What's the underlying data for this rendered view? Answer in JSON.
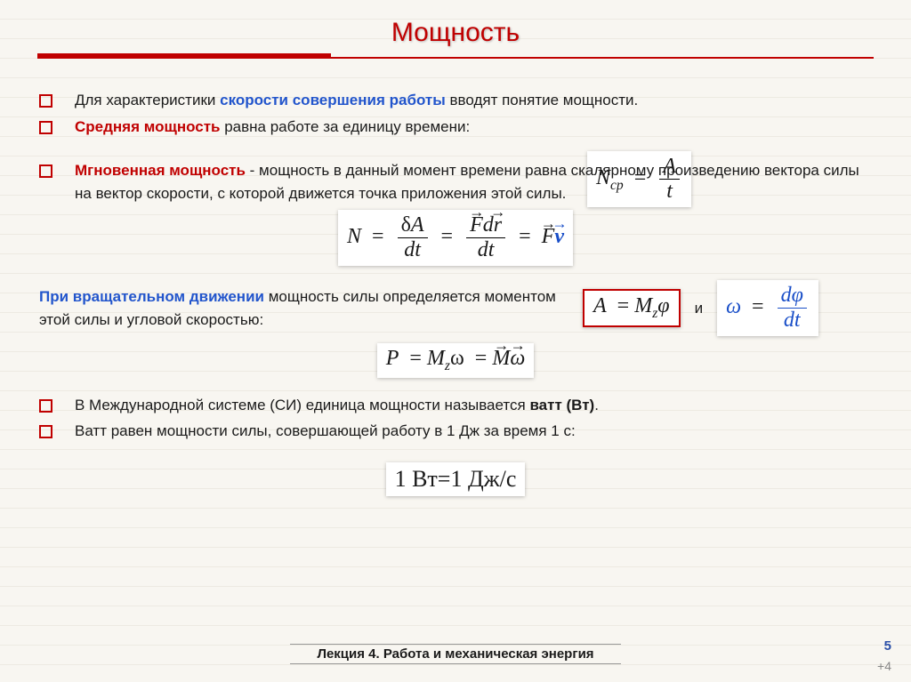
{
  "title": "Мощность",
  "bullets_top": [
    {
      "parts": [
        {
          "t": "Для характеристики ",
          "cls": ""
        },
        {
          "t": "скорости совершения работы",
          "cls": "hl-blue"
        },
        {
          "t": " вводят понятие мощности.",
          "cls": ""
        }
      ]
    },
    {
      "parts": [
        {
          "t": "Средняя мощность",
          "cls": "hl-red"
        },
        {
          "t": " равна работе за единицу времени:",
          "cls": ""
        }
      ]
    }
  ],
  "bullet_inst": {
    "parts": [
      {
        "t": "Мгновенная мощность",
        "cls": "hl-red"
      },
      {
        "t": " - мощность в данный момент времени равна скалярному произведению вектора силы на вектор скорости, с которой движется точка приложения этой силы.",
        "cls": ""
      }
    ]
  },
  "rotational_text": {
    "parts": [
      {
        "t": "При вращательном движении",
        "cls": "hl-blue"
      },
      {
        "t": " мощность силы определяется моментом этой силы и угловой скоростью:",
        "cls": ""
      }
    ]
  },
  "and_label": "и",
  "bullets_si": [
    {
      "parts": [
        {
          "t": "В Международной системе (СИ) единица мощности называется ",
          "cls": ""
        },
        {
          "t": "ватт (Вт)",
          "cls": "bold"
        },
        {
          "t": ".",
          "cls": ""
        }
      ]
    },
    {
      "parts": [
        {
          "t": "Ватт равен мощности силы, совершающей работу в 1 Дж за время 1 с:",
          "cls": ""
        }
      ]
    }
  ],
  "formula_ncp": {
    "lhs": "N",
    "sub": "ср",
    "top": "A",
    "bot": "t"
  },
  "formula_inst": {
    "lhs": "N",
    "f1top_delta": "δ",
    "f1top": "A",
    "f1bot": "dt",
    "f2top_F": "F",
    "f2top_d": "d",
    "f2top_r": "r",
    "f2bot": "dt",
    "rhs_F": "F",
    "rhs_v": "v"
  },
  "formula_A": {
    "lhs": "A",
    "M": "M",
    "sub": "z",
    "phi": "φ"
  },
  "formula_omega": {
    "lhs": "ω",
    "top_d": "d",
    "top_phi": "φ",
    "bot": "dt"
  },
  "formula_P": {
    "lhs": "P",
    "M": "M",
    "sub": "z",
    "omega": "ω",
    "Mv": "M",
    "omegav": "ω"
  },
  "formula_watt": "1 Вт=1 Дж/с",
  "footer": "Лекция 4. Работа и механическая энергия",
  "page_num": "5",
  "plus4": "+4",
  "colors": {
    "accent_red": "#c00000",
    "accent_blue": "#2255cc",
    "formula_blue": "#1a4fc8",
    "bg_line": "#edeae2",
    "bg_fill": "#f8f6f1"
  }
}
